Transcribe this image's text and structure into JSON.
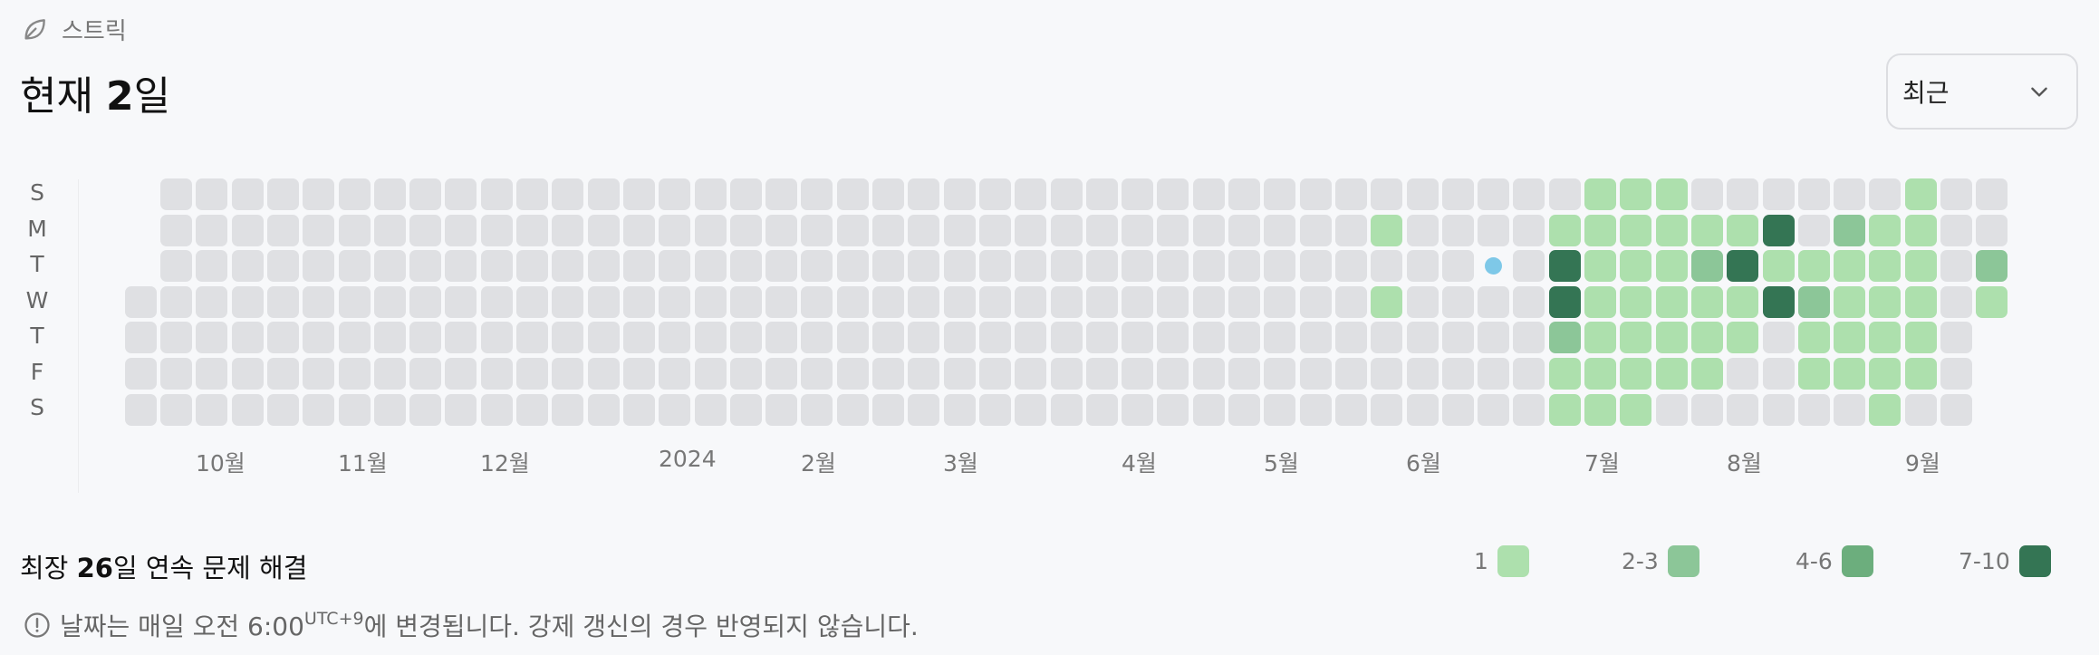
{
  "header": {
    "section_label": "스트릭",
    "icon": "leaf-icon"
  },
  "title": {
    "prefix": "현재 ",
    "value": "2",
    "suffix": "일"
  },
  "period_select": {
    "value": "최근"
  },
  "day_labels": [
    "S",
    "M",
    "T",
    "W",
    "T",
    "F",
    "S"
  ],
  "month_labels": [
    "10월",
    "11월",
    "12월",
    "2024",
    "2월",
    "3월",
    "4월",
    "5월",
    "6월",
    "7월",
    "8월",
    "9월"
  ],
  "colors": {
    "empty": "#dfe0e3",
    "level1": "#ade0ad",
    "level2": "#8cc698",
    "level3": "#6cae7d",
    "level4": "#347554",
    "today": "#7ec8e8"
  },
  "heatmap": {
    "rows": [
      "...................................00000000000011100000010.",
      "...................................0000000000000000000000000000000000000100000111110402110.",
      "...................................00000000000000000000000000000000000000000000000000000000000000000040111124101112",
      "",
      "",
      "",
      ""
    ]
  },
  "streak": {
    "prefix": "최장 ",
    "value": "26",
    "suffix": "일 연속 문제 해결"
  },
  "legend": [
    "1",
    "2-3",
    "4-6",
    "7-10"
  ],
  "note": {
    "text": "날짜는 매일 오전 6:00",
    "sup": "UTC+9",
    "suffix": "에 변경됩니다. 강제 갱신의 경우 반영되지 않습니다."
  }
}
